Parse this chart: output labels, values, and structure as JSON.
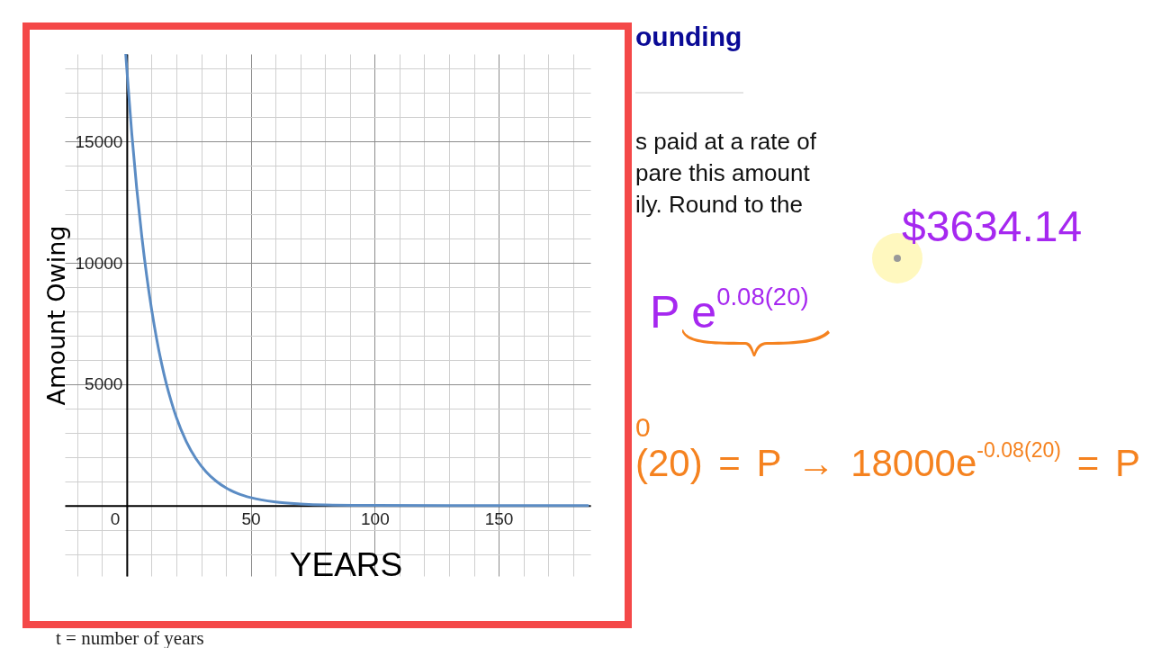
{
  "chart_data": {
    "type": "line",
    "xlabel": "YEARS",
    "ylabel": "Amount Owing",
    "x": [
      -0.4,
      0,
      2,
      4,
      6,
      8,
      10,
      12,
      14,
      16,
      18,
      20,
      24,
      28,
      32,
      36,
      40,
      45,
      50,
      60,
      70,
      80,
      100,
      130,
      186
    ],
    "series": [
      {
        "color": "#5b8cc4",
        "values": [
          18580,
          18000,
          15340,
          13070,
          11140,
          9490,
          8090,
          6890,
          5870,
          5000,
          4270,
          3630,
          2640,
          1920,
          1390,
          1010,
          730,
          490,
          330,
          150,
          70,
          30,
          10,
          0,
          0
        ]
      }
    ],
    "xlim": [
      -25,
      187
    ],
    "ylim": [
      -2900,
      18600
    ],
    "xticks": [
      {
        "value": -20,
        "label": null
      },
      {
        "value": -10,
        "label": null
      },
      0,
      {
        "value": 10,
        "label": null
      },
      {
        "value": 20,
        "label": null
      },
      {
        "value": 30,
        "label": null
      },
      {
        "value": 40,
        "label": null
      },
      50,
      {
        "value": 60,
        "label": null
      },
      {
        "value": 70,
        "label": null
      },
      {
        "value": 80,
        "label": null
      },
      {
        "value": 90,
        "label": null
      },
      100,
      {
        "value": 110,
        "label": null
      },
      {
        "value": 120,
        "label": null
      },
      {
        "value": 130,
        "label": null
      },
      {
        "value": 140,
        "label": null
      },
      150,
      {
        "value": 160,
        "label": null
      },
      {
        "value": 170,
        "label": null
      },
      {
        "value": 180,
        "label": null
      }
    ],
    "yticks": [
      {
        "value": -2000,
        "label": null
      },
      {
        "value": -1000,
        "label": null
      },
      {
        "value": 0,
        "label": null
      },
      {
        "value": 1000,
        "label": null
      },
      {
        "value": 2000,
        "label": null
      },
      {
        "value": 3000,
        "label": null
      },
      {
        "value": 4000,
        "label": null
      },
      5000,
      {
        "value": 6000,
        "label": null
      },
      {
        "value": 7000,
        "label": null
      },
      {
        "value": 8000,
        "label": null
      },
      {
        "value": 9000,
        "label": null
      },
      10000,
      {
        "value": 11000,
        "label": null
      },
      {
        "value": 12000,
        "label": null
      },
      {
        "value": 13000,
        "label": null
      },
      {
        "value": 14000,
        "label": null
      },
      15000,
      {
        "value": 16000,
        "label": null
      },
      {
        "value": 17000,
        "label": null
      },
      {
        "value": 18000,
        "label": null
      }
    ],
    "grid": true,
    "annotations": [
      "ounding",
      "s paid at a rate of",
      "pare this amount",
      "ily. Round to the",
      "$3634.14",
      "P e$^{0.08(20)}$",
      "0",
      "(20) = P → 18000e$^{-0.08(20)}$ = P",
      "t = number of years"
    ]
  }
}
